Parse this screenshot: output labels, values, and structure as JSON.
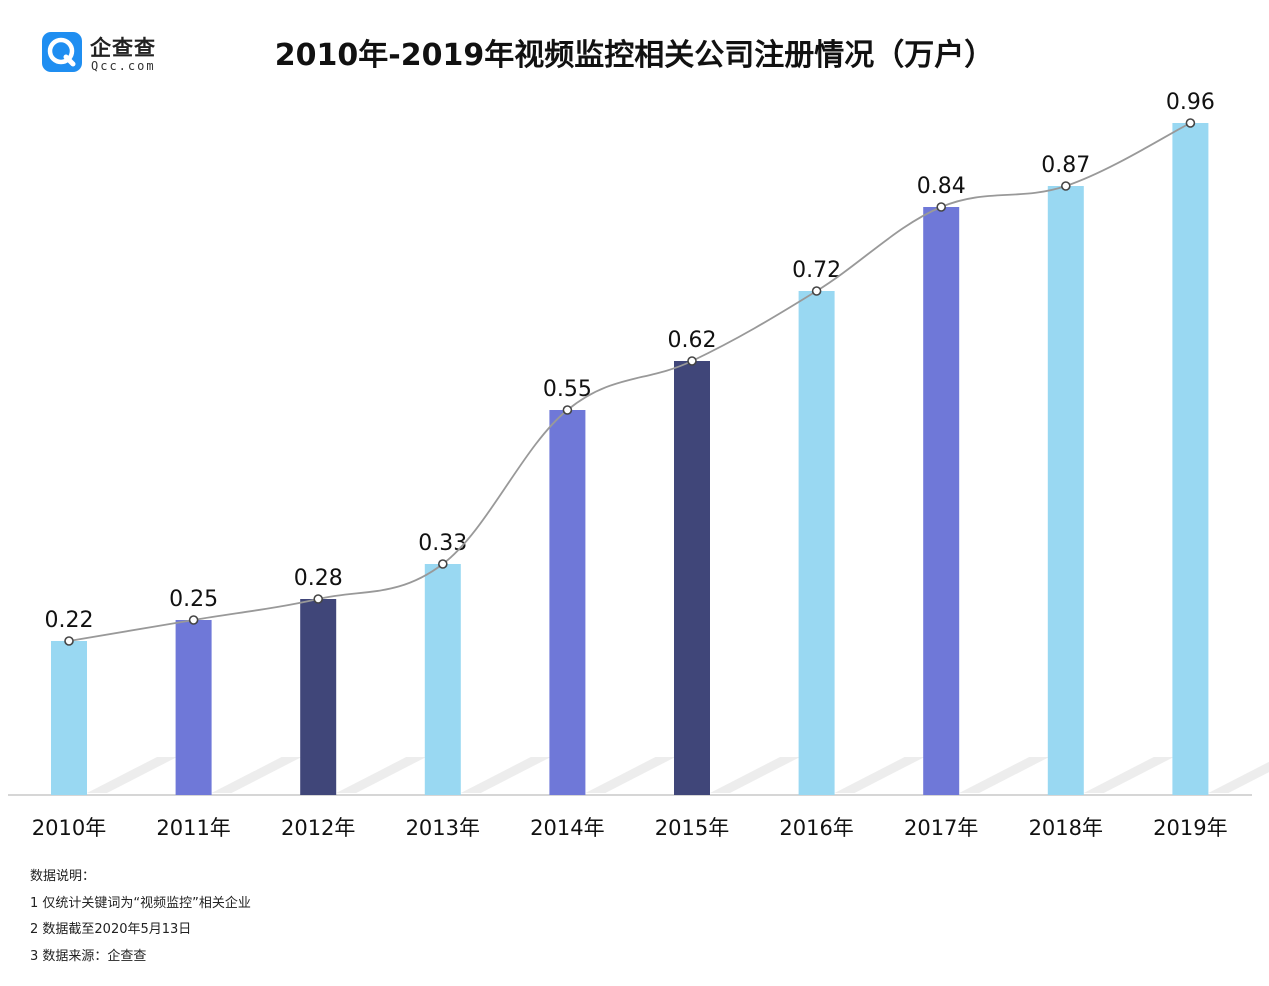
{
  "logo": {
    "icon": "qcc-logo-icon",
    "name": "企查查",
    "domain": "Qcc.com",
    "color": "#1f8ef1"
  },
  "chart_data": {
    "type": "bar",
    "title": "2010年-2019年视频监控相关公司注册情况（万户）",
    "categories": [
      "2010年",
      "2011年",
      "2012年",
      "2013年",
      "2014年",
      "2015年",
      "2016年",
      "2017年",
      "2018年",
      "2019年"
    ],
    "values": [
      0.22,
      0.25,
      0.28,
      0.33,
      0.55,
      0.62,
      0.72,
      0.84,
      0.87,
      0.96
    ],
    "value_labels": [
      "0.22",
      "0.25",
      "0.28",
      "0.33",
      "0.55",
      "0.62",
      "0.72",
      "0.84",
      "0.87",
      "0.96"
    ],
    "bar_colors": [
      "#99d8f2",
      "#6f78d8",
      "#404679",
      "#99d8f2",
      "#6f78d8",
      "#404679",
      "#99d8f2",
      "#6f78d8",
      "#99d8f2",
      "#99d8f2"
    ],
    "overlay_line": {
      "type": "line",
      "values": [
        0.22,
        0.25,
        0.28,
        0.33,
        0.55,
        0.62,
        0.72,
        0.84,
        0.87,
        0.96
      ],
      "color": "#999999"
    },
    "xlabel": "",
    "ylabel": "",
    "ylim": [
      0,
      1.1
    ],
    "grid": false,
    "legend": "none"
  },
  "notes": {
    "heading": "数据说明：",
    "items": [
      "1 仅统计关键词为“视频监控”相关企业",
      "2 数据截至2020年5月13日",
      "3 数据来源：企查查"
    ]
  }
}
